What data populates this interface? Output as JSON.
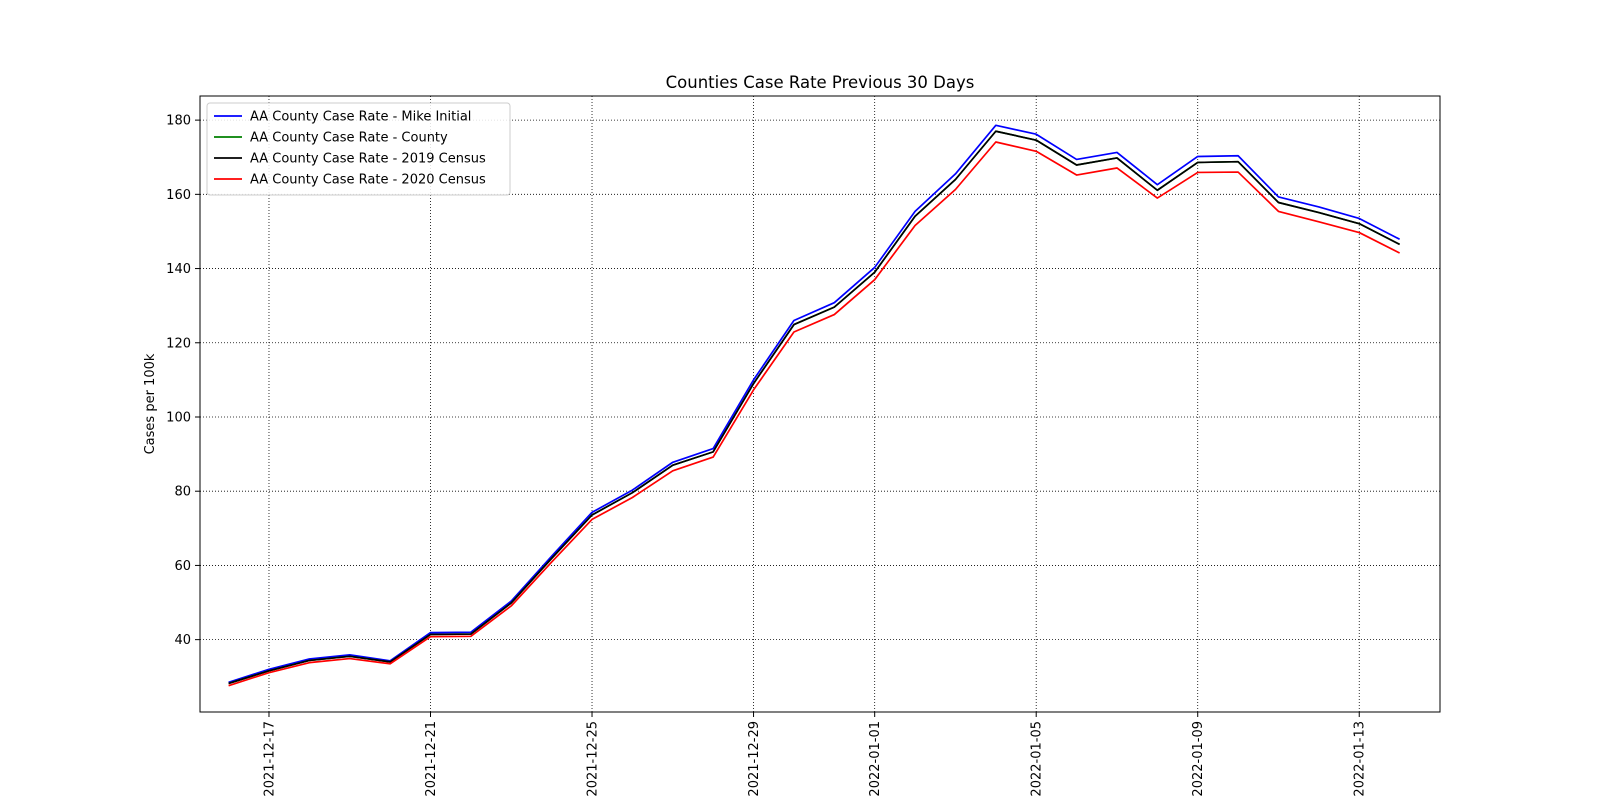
{
  "chart_data": {
    "type": "line",
    "title": "Counties Case Rate Previous 30 Days",
    "xlabel": "",
    "ylabel": "Cases per 100k",
    "x": [
      "2021-12-16",
      "2021-12-17",
      "2021-12-18",
      "2021-12-19",
      "2021-12-20",
      "2021-12-21",
      "2021-12-22",
      "2021-12-23",
      "2021-12-24",
      "2021-12-25",
      "2021-12-26",
      "2021-12-27",
      "2021-12-28",
      "2021-12-29",
      "2021-12-30",
      "2021-12-31",
      "2022-01-01",
      "2022-01-02",
      "2022-01-03",
      "2022-01-04",
      "2022-01-05",
      "2022-01-06",
      "2022-01-07",
      "2022-01-08",
      "2022-01-09",
      "2022-01-10",
      "2022-01-11",
      "2022-01-12",
      "2022-01-13",
      "2022-01-14"
    ],
    "x_ticks": [
      "2021-12-17",
      "2021-12-21",
      "2021-12-25",
      "2021-12-29",
      "2022-01-01",
      "2022-01-05",
      "2022-01-09",
      "2022-01-13"
    ],
    "y_ticks": [
      40,
      60,
      80,
      100,
      120,
      140,
      160,
      180
    ],
    "ylim": [
      20.5,
      186.5
    ],
    "xlim": [
      "2021-12-15T07:00",
      "2022-01-15T00:00"
    ],
    "grid": true,
    "grid_style": "dotted",
    "legend_position": "upper-left",
    "series": [
      {
        "name": "AA County Case Rate - Mike Initial",
        "color": "#0000ff",
        "values": [
          28.5,
          32.0,
          34.8,
          35.9,
          34.3,
          41.9,
          42.0,
          50.4,
          62.5,
          74.3,
          80.3,
          87.8,
          91.5,
          110.0,
          126.0,
          130.8,
          140.3,
          155.4,
          165.5,
          178.6,
          176.2,
          169.4,
          171.3,
          162.6,
          170.2,
          170.4,
          159.3,
          156.6,
          153.5,
          147.9
        ]
      },
      {
        "name": "AA County Case Rate - County",
        "color": "#008000",
        "values": [
          28.2,
          31.6,
          34.4,
          35.5,
          34.0,
          41.4,
          41.5,
          49.9,
          61.9,
          73.6,
          79.6,
          87.0,
          90.6,
          109.0,
          124.9,
          129.6,
          139.0,
          154.1,
          164.0,
          177.0,
          174.6,
          167.9,
          169.8,
          161.1,
          168.6,
          168.8,
          157.8,
          155.1,
          152.1,
          146.5
        ]
      },
      {
        "name": "AA County Case Rate - 2019 Census",
        "color": "#000000",
        "values": [
          28.2,
          31.6,
          34.4,
          35.5,
          34.0,
          41.4,
          41.5,
          49.9,
          61.9,
          73.6,
          79.6,
          87.0,
          90.6,
          109.0,
          124.9,
          129.6,
          139.0,
          154.1,
          164.0,
          177.0,
          174.6,
          167.9,
          169.8,
          161.1,
          168.6,
          168.8,
          157.8,
          155.1,
          152.1,
          146.5
        ]
      },
      {
        "name": "AA County Case Rate - 2020 Census",
        "color": "#ff0000",
        "values": [
          27.6,
          31.1,
          33.8,
          34.9,
          33.5,
          40.8,
          40.9,
          49.1,
          60.9,
          72.4,
          78.3,
          85.5,
          89.2,
          107.3,
          122.9,
          127.6,
          137.0,
          151.6,
          161.3,
          174.1,
          171.6,
          165.2,
          167.1,
          159.0,
          165.9,
          166.0,
          155.4,
          152.6,
          149.7,
          144.2
        ]
      }
    ]
  }
}
